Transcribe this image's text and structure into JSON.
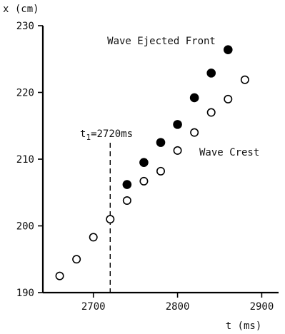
{
  "chart_data": {
    "type": "scatter",
    "xlabel": "t (ms)",
    "ylabel": "x (cm)",
    "xlim": [
      2640,
      2920
    ],
    "ylim": [
      190,
      230
    ],
    "xticks": [
      2700,
      2800,
      2900
    ],
    "yticks": [
      190,
      200,
      210,
      220,
      230
    ],
    "grid": false,
    "series": [
      {
        "name": "Wave Ejected Front",
        "marker": "filled-circle",
        "color": "#000000",
        "x": [
          2740,
          2760,
          2780,
          2800,
          2820,
          2840,
          2860
        ],
        "y": [
          206.2,
          209.5,
          212.5,
          215.2,
          219.2,
          222.9,
          226.4
        ]
      },
      {
        "name": "Wave Crest",
        "marker": "open-circle",
        "color": "#000000",
        "x": [
          2660,
          2680,
          2700,
          2720,
          2740,
          2760,
          2780,
          2800,
          2820,
          2840,
          2860,
          2880
        ],
        "y": [
          192.5,
          195.0,
          198.3,
          201.0,
          203.8,
          206.7,
          208.2,
          211.3,
          214.0,
          217.0,
          219.0,
          221.9
        ]
      }
    ],
    "annotations": [
      {
        "text": "t1=2720ms",
        "x": 2720
      }
    ]
  }
}
